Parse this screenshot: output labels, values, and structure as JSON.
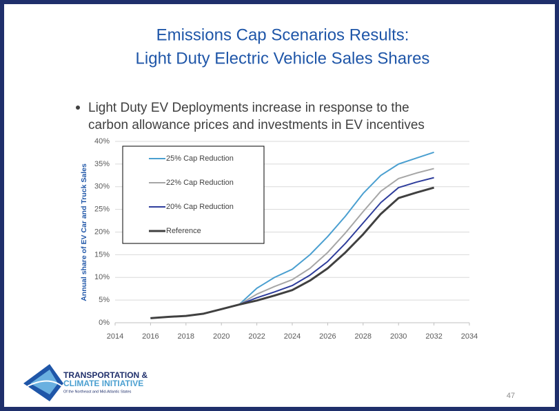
{
  "slide": {
    "title_lines": [
      "Emissions Cap Scenarios Results:",
      "Light Duty Electric Vehicle Sales Shares"
    ],
    "bullet_lines": [
      "Light Duty EV Deployments increase in response to the",
      "carbon allowance prices and investments in EV incentives"
    ],
    "logo_lines": [
      "TRANSPORTATION &",
      "CLIMATE INITIATIVE",
      "Of the Northeast and Mid-Atlantic States"
    ],
    "page_number": "47"
  },
  "chart_data": {
    "type": "line",
    "y_label": "Annual share of EV Car and Truck Sales",
    "x": [
      2016,
      2017,
      2018,
      2019,
      2020,
      2021,
      2022,
      2023,
      2024,
      2025,
      2026,
      2027,
      2028,
      2029,
      2030,
      2031,
      2032
    ],
    "series": [
      {
        "name": "25% Cap Reduction",
        "color": "#4a9fd0",
        "width": 2,
        "values": [
          1.0,
          1.3,
          1.5,
          2.0,
          3.0,
          4.0,
          7.6,
          10.0,
          11.8,
          15.0,
          19.0,
          23.5,
          28.5,
          32.5,
          35.0,
          36.3,
          37.6
        ]
      },
      {
        "name": "22% Cap Reduction",
        "color": "#a6a6a6",
        "width": 2,
        "values": [
          1.0,
          1.3,
          1.5,
          2.0,
          3.0,
          4.0,
          6.3,
          8.0,
          9.5,
          12.0,
          15.5,
          19.8,
          24.5,
          29.0,
          31.8,
          33.0,
          34.0
        ]
      },
      {
        "name": "20% Cap Reduction",
        "color": "#2e3d9c",
        "width": 2,
        "values": [
          1.0,
          1.3,
          1.5,
          2.0,
          3.0,
          4.0,
          5.5,
          6.8,
          8.2,
          10.5,
          13.5,
          17.5,
          22.0,
          26.5,
          29.8,
          31.0,
          32.0
        ]
      },
      {
        "name": "Reference",
        "color": "#404040",
        "width": 3,
        "values": [
          1.0,
          1.3,
          1.5,
          2.0,
          3.0,
          4.0,
          4.9,
          6.0,
          7.2,
          9.3,
          12.0,
          15.5,
          19.5,
          24.0,
          27.5,
          28.7,
          29.8
        ]
      }
    ],
    "xlim": [
      2014,
      2034
    ],
    "xticks": [
      2014,
      2016,
      2018,
      2020,
      2022,
      2024,
      2026,
      2028,
      2030,
      2032,
      2034
    ],
    "ylim": [
      0,
      40
    ],
    "yticks": [
      {
        "value": 0,
        "label": "0%"
      },
      {
        "value": 5,
        "label": "5%"
      },
      {
        "value": 10,
        "label": "10%"
      },
      {
        "value": 15,
        "label": "15%"
      },
      {
        "value": 20,
        "label": "20%"
      },
      {
        "value": 25,
        "label": "25%"
      },
      {
        "value": 30,
        "label": "30%"
      },
      {
        "value": 35,
        "label": "35%"
      },
      {
        "value": 40,
        "label": "40%"
      }
    ],
    "grid": true,
    "legend": "upper left"
  }
}
